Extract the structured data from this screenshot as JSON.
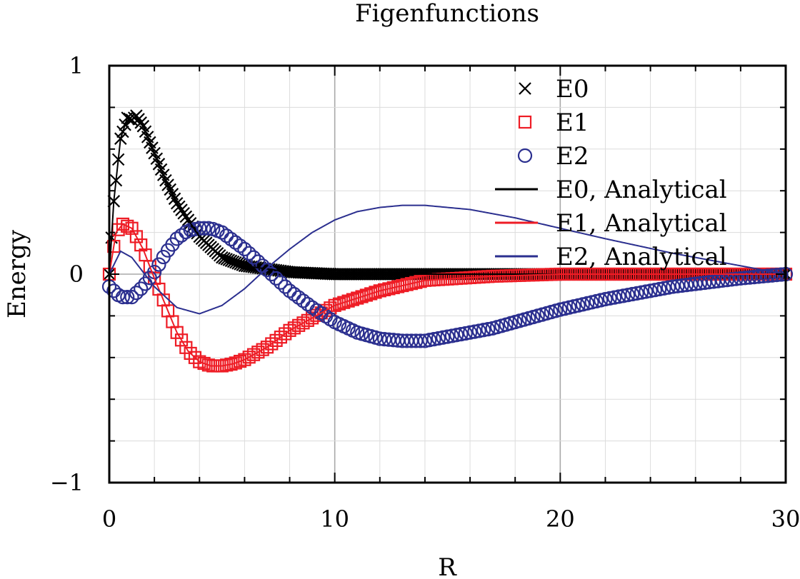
{
  "chart_data": {
    "type": "scatter",
    "title": "Figenfunctions",
    "xlabel": "R",
    "ylabel": "Energy",
    "xlim": [
      0,
      30
    ],
    "ylim": [
      -1,
      1
    ],
    "xticks": [
      0,
      10,
      20,
      30
    ],
    "yticks": [
      -1,
      0,
      1
    ],
    "xtick_labels": [
      "0",
      "10",
      "20",
      "30"
    ],
    "ytick_labels": [
      "−1",
      "0",
      "1"
    ],
    "grid": true,
    "legend_position": "top-right",
    "colors": {
      "E0": "#000000",
      "E1": "#ee1c25",
      "E2": "#2b2f8f"
    },
    "series": [
      {
        "name": "E0",
        "style": "marker-x",
        "x": [
          0,
          0.2,
          0.5,
          0.8,
          1.0,
          1.2,
          1.5,
          2,
          2.5,
          3,
          4,
          5,
          6,
          8,
          10,
          15,
          20,
          25,
          30
        ],
        "y": [
          0,
          0.35,
          0.65,
          0.75,
          0.74,
          0.76,
          0.71,
          0.58,
          0.45,
          0.34,
          0.18,
          0.08,
          0.04,
          0.01,
          0.0,
          0.0,
          0.0,
          0.0,
          0.0
        ]
      },
      {
        "name": "E1",
        "style": "marker-square",
        "x": [
          0,
          0.3,
          0.6,
          1.0,
          1.5,
          2,
          2.5,
          3,
          3.5,
          4,
          4.5,
          5,
          5.5,
          6,
          7,
          8,
          9,
          10,
          12,
          14,
          17,
          20,
          25,
          30
        ],
        "y": [
          0,
          0.2,
          0.24,
          0.22,
          0.12,
          -0.02,
          -0.15,
          -0.28,
          -0.37,
          -0.42,
          -0.44,
          -0.44,
          -0.43,
          -0.41,
          -0.35,
          -0.27,
          -0.21,
          -0.15,
          -0.08,
          -0.03,
          -0.01,
          0.0,
          0.0,
          0.0
        ]
      },
      {
        "name": "E2",
        "style": "marker-circle",
        "x": [
          0,
          0.5,
          1.0,
          1.5,
          2,
          2.5,
          3,
          3.5,
          4,
          4.5,
          5,
          6,
          7,
          8,
          9,
          10,
          11,
          12,
          13,
          14,
          15,
          17,
          20,
          22,
          25,
          28,
          30
        ],
        "y": [
          -0.06,
          -0.11,
          -0.11,
          -0.06,
          0.01,
          0.1,
          0.17,
          0.21,
          0.22,
          0.22,
          0.2,
          0.12,
          0.02,
          -0.08,
          -0.16,
          -0.23,
          -0.28,
          -0.31,
          -0.32,
          -0.32,
          -0.3,
          -0.26,
          -0.17,
          -0.12,
          -0.06,
          -0.02,
          0.0
        ]
      },
      {
        "name": "E0, Analytical",
        "style": "line",
        "x": [
          0,
          0.2,
          0.5,
          0.8,
          1.0,
          1.2,
          1.5,
          2,
          2.5,
          3,
          4,
          5,
          6,
          8,
          10,
          15,
          20,
          25,
          30
        ],
        "y": [
          0,
          0.35,
          0.65,
          0.75,
          0.74,
          0.76,
          0.71,
          0.58,
          0.45,
          0.34,
          0.18,
          0.08,
          0.04,
          0.01,
          0.0,
          0.0,
          0.0,
          0.0,
          0.0
        ]
      },
      {
        "name": "E1, Analytical",
        "style": "line",
        "x": [
          0,
          0.3,
          0.6,
          1.0,
          1.5,
          2,
          2.5,
          3,
          3.5,
          4,
          4.5,
          5,
          5.5,
          6,
          7,
          8,
          9,
          10,
          12,
          14,
          17,
          20,
          25,
          30
        ],
        "y": [
          0,
          0.2,
          0.24,
          0.22,
          0.12,
          -0.02,
          -0.15,
          -0.28,
          -0.37,
          -0.42,
          -0.44,
          -0.44,
          -0.43,
          -0.41,
          -0.35,
          -0.27,
          -0.21,
          -0.15,
          -0.08,
          -0.03,
          -0.01,
          0.0,
          0.0,
          0.0
        ]
      },
      {
        "name": "E2, Analytical",
        "style": "line",
        "x": [
          0,
          0.5,
          1.0,
          2,
          3,
          4,
          5,
          6,
          7,
          8,
          9,
          10,
          11,
          12,
          13,
          14,
          16,
          18,
          20,
          22,
          25,
          28,
          30
        ],
        "y": [
          0,
          0.11,
          0.08,
          -0.06,
          -0.16,
          -0.19,
          -0.15,
          -0.07,
          0.03,
          0.12,
          0.2,
          0.26,
          0.3,
          0.32,
          0.33,
          0.33,
          0.31,
          0.27,
          0.22,
          0.17,
          0.1,
          0.04,
          0.0
        ]
      }
    ]
  }
}
